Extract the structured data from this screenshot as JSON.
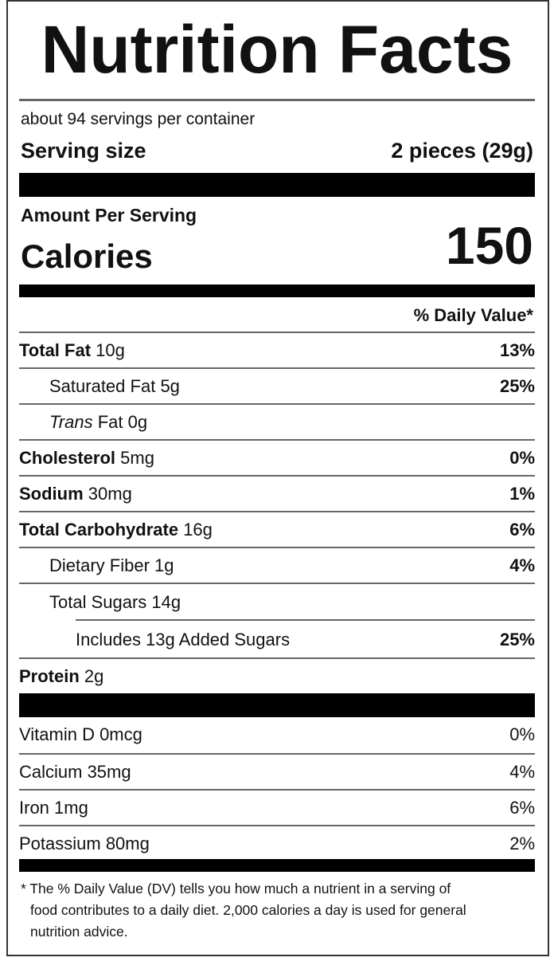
{
  "title": "Nutrition Facts",
  "servings": "about 94 servings per container",
  "serving_size": {
    "label": "Serving size",
    "value": "2 pieces (29g)"
  },
  "amount_per_serving": "Amount Per Serving",
  "calories": {
    "label": "Calories",
    "value": "150"
  },
  "daily_value_header": "% Daily Value*",
  "nutrients": [
    {
      "name": "Total Fat",
      "amount": "10g",
      "dv": "13%"
    },
    {
      "name": "Saturated Fat",
      "amount": "5g",
      "dv": "25%"
    },
    {
      "name_italic": "Trans",
      "name": "Fat",
      "amount": "0g"
    },
    {
      "name": "Cholesterol",
      "amount": "5mg",
      "dv": "0%"
    },
    {
      "name": "Sodium",
      "amount": "30mg",
      "dv": "1%"
    },
    {
      "name": "Total Carbohydrate",
      "amount": "16g",
      "dv": "6%"
    },
    {
      "name": "Dietary Fiber",
      "amount": "1g",
      "dv": "4%"
    },
    {
      "name": "Total Sugars",
      "amount": "14g"
    },
    {
      "name": "Includes 13g Added Sugars",
      "dv": "25%"
    },
    {
      "name": "Protein",
      "amount": "2g"
    }
  ],
  "vitamins": [
    {
      "name": "Vitamin D 0mcg",
      "dv": "0%"
    },
    {
      "name": "Calcium 35mg",
      "dv": "4%"
    },
    {
      "name": "Iron 1mg",
      "dv": "6%"
    },
    {
      "name": "Potassium 80mg",
      "dv": "2%"
    }
  ],
  "footnote": "* The % Daily Value (DV) tells you how much a nutrient in a serving of food contributes to a daily diet. 2,000 calories a day is used for general nutrition advice."
}
